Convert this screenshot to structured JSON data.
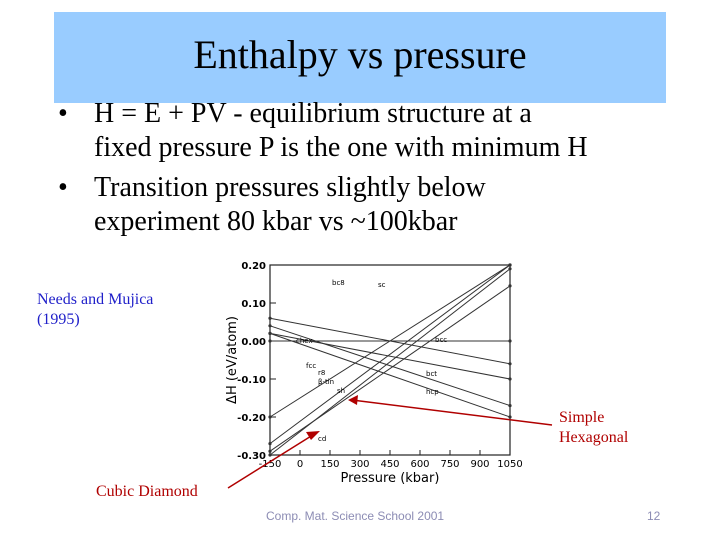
{
  "slide": {
    "title": "Enthalpy vs pressure",
    "bullets": [
      {
        "line1": "H = E + PV - equilibrium structure at a",
        "line2": "fixed pressure P is the one with minimum H"
      },
      {
        "line1": "Transition pressures slightly below",
        "line2": "experiment 80 kbar vs ~100kbar"
      }
    ],
    "bullet_char": "•",
    "citation": {
      "line1": "Needs and Mujica",
      "line2": "(1995)"
    },
    "annotation_sh": {
      "line1": "Simple",
      "line2": "Hexagonal"
    },
    "annotation_cd": "Cubic Diamond",
    "footer": "Comp. Mat. Science School 2001",
    "page_number": "12"
  },
  "chart_data": {
    "type": "line",
    "ylabel": "ΔH (eV/atom)",
    "xlabel": "Pressure (kbar)",
    "xticks": [
      "-150",
      "0",
      "150",
      "300",
      "450",
      "600",
      "750",
      "900",
      "1050"
    ],
    "yticks": [
      "0.20",
      "0.10",
      "0.00",
      "-0.10",
      "-0.20",
      "-0.30"
    ],
    "xlim": [
      -150,
      1050
    ],
    "ylim": [
      -0.3,
      0.2
    ],
    "series": [
      {
        "name": "bc8",
        "x": [
          -150,
          1050
        ],
        "y": [
          -0.29,
          0.145
        ]
      },
      {
        "name": "sc",
        "x": [
          -150,
          1050
        ],
        "y": [
          -0.3,
          0.19
        ]
      },
      {
        "name": "bcc",
        "x": [
          -150,
          1050
        ],
        "y": [
          0.0,
          0.0
        ]
      },
      {
        "name": "β-tin",
        "x": [
          -150,
          1050
        ],
        "y": [
          0.02,
          -0.1
        ]
      },
      {
        "name": "fcc",
        "x": [
          -150,
          1050
        ],
        "y": [
          0.06,
          -0.06
        ]
      },
      {
        "name": "hcp",
        "x": [
          -150,
          1050
        ],
        "y": [
          0.04,
          -0.17
        ]
      },
      {
        "name": "sh",
        "x": [
          -150,
          1050
        ],
        "y": [
          0.02,
          -0.2
        ]
      },
      {
        "name": "cd",
        "x": [
          -150,
          1050
        ],
        "y": [
          -0.27,
          0.2
        ]
      },
      {
        "name": "r8",
        "x": [
          -150,
          1050
        ],
        "y": [
          -0.2,
          0.2
        ]
      }
    ],
    "line_labels": [
      "bc8",
      "sc",
      "bcc",
      "chex",
      "bct",
      "fcc",
      "hcp",
      "r8",
      "β-tin",
      "sh",
      "cd"
    ],
    "grid": false
  }
}
